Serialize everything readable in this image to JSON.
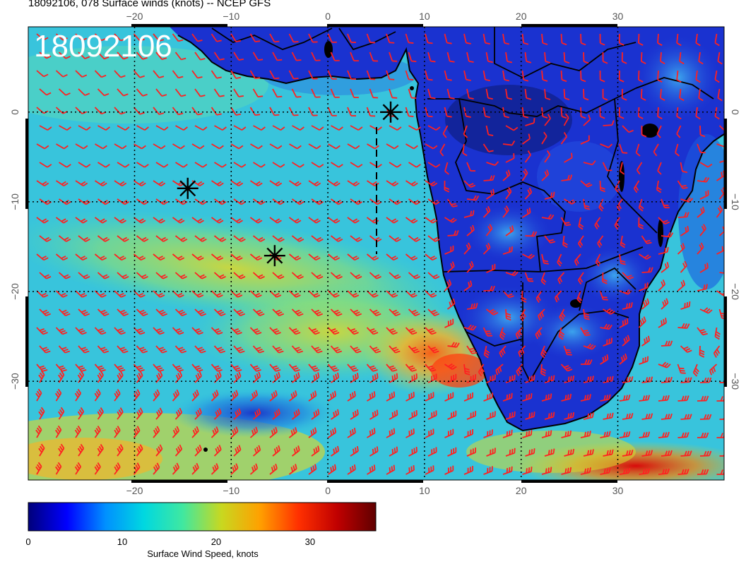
{
  "figure": {
    "title": "18092106, 078 Surface winds (knots) -- NCEP GFS",
    "stamp": "18092106"
  },
  "map": {
    "lon_range": [
      -31,
      41
    ],
    "lat_range": [
      -41,
      9.5
    ],
    "grid_lons": [
      -20,
      -10,
      0,
      10,
      20,
      30
    ],
    "grid_lats": [
      0,
      -10,
      -20,
      -30
    ],
    "lon_ticks": [
      "−20",
      "−10",
      "0",
      "10",
      "20",
      "30"
    ],
    "lat_ticks": [
      "0",
      "−10",
      "−20",
      "−30"
    ],
    "ocean_color": "#3fc8d8",
    "land_color": "#1a2fd0",
    "barb_color": "#ff2020",
    "markers": [
      {
        "lon": 6.5,
        "lat": 0.0
      },
      {
        "lon": -14.5,
        "lat": -8.5
      },
      {
        "lon": -5.5,
        "lat": -16.0
      }
    ]
  },
  "colorbar": {
    "ticks": [
      "0",
      "10",
      "20",
      "30"
    ],
    "tick_values": [
      0,
      10,
      20,
      30
    ],
    "max_value": 37,
    "label": "Surface Wind Speed, knots",
    "stops": [
      "#00007a",
      "#0000ff",
      "#0090ff",
      "#00d8e0",
      "#40e8a0",
      "#c8d820",
      "#ffa000",
      "#ff3000",
      "#c00000",
      "#600000"
    ]
  }
}
